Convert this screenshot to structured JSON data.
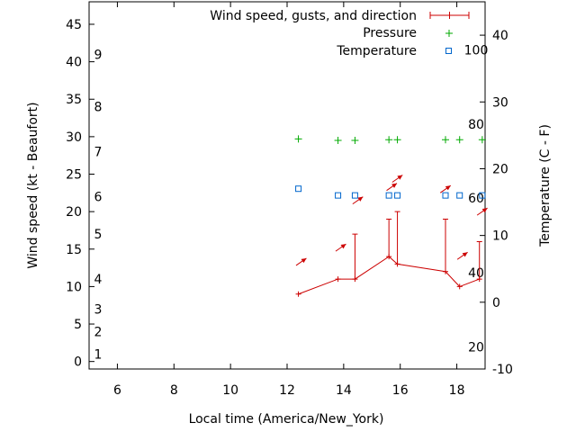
{
  "chart_data": {
    "type": "line",
    "xlabel": "Local time (America/New_York)",
    "ylabel": "Wind speed (kt - Beaufort)",
    "y2label": "Temperature (C - F)",
    "xlim": [
      5,
      19
    ],
    "ylim": [
      -1,
      48
    ],
    "y2lim": [
      -10,
      45
    ],
    "x_ticks": [
      6,
      8,
      10,
      12,
      14,
      16,
      18
    ],
    "y_ticks": [
      0,
      5,
      10,
      15,
      20,
      25,
      30,
      35,
      40,
      45
    ],
    "y2_ticks": [
      -10,
      0,
      10,
      20,
      30,
      40
    ],
    "beaufort_labels": [
      {
        "text": "1",
        "y": 1
      },
      {
        "text": "2",
        "y": 4
      },
      {
        "text": "3",
        "y": 7
      },
      {
        "text": "4",
        "y": 11
      },
      {
        "text": "5",
        "y": 17
      },
      {
        "text": "6",
        "y": 22
      },
      {
        "text": "7",
        "y": 28
      },
      {
        "text": "8",
        "y": 34
      },
      {
        "text": "9",
        "y": 41
      }
    ],
    "fahrenheit_labels": [
      {
        "text": "20",
        "t": -6.7
      },
      {
        "text": "40",
        "t": 4.4
      },
      {
        "text": "60",
        "t": 15.6
      },
      {
        "text": "80",
        "t": 26.7
      },
      {
        "text": "100",
        "t": 37.8
      }
    ],
    "legend": [
      "Wind speed, gusts, and direction",
      "Pressure",
      "Temperature"
    ],
    "colors": {
      "wind": "#cc0000",
      "pressure": "#00aa00",
      "temperature": "#0066cc"
    },
    "series": [
      {
        "name": "Wind speed, gusts, and direction",
        "x": [
          12.4,
          13.8,
          14.4,
          15.6,
          15.9,
          17.6,
          18.1,
          18.8
        ],
        "values": [
          9,
          11,
          11,
          14,
          13,
          12,
          10,
          11
        ],
        "gusts": [
          null,
          null,
          17,
          19,
          20,
          19,
          null,
          16
        ]
      },
      {
        "name": "Pressure",
        "x": [
          12.4,
          13.8,
          14.4,
          15.6,
          15.9,
          17.6,
          18.1,
          18.9
        ],
        "values": [
          29.7,
          29.5,
          29.5,
          29.6,
          29.6,
          29.6,
          29.6,
          29.6
        ]
      },
      {
        "name": "Temperature",
        "axis": "y2",
        "x": [
          12.4,
          13.8,
          14.4,
          15.6,
          15.9,
          17.6,
          18.1,
          18.9
        ],
        "values": [
          17,
          16,
          16,
          16,
          16,
          16,
          16,
          16
        ]
      }
    ],
    "wind_arrows": [
      {
        "x": 12.5,
        "y": 13.3
      },
      {
        "x": 13.9,
        "y": 15.2
      },
      {
        "x": 14.5,
        "y": 21.5
      },
      {
        "x": 15.7,
        "y": 23.3
      },
      {
        "x": 15.9,
        "y": 24.4
      },
      {
        "x": 17.6,
        "y": 23.0
      },
      {
        "x": 18.2,
        "y": 14.1
      },
      {
        "x": 18.9,
        "y": 20.0
      }
    ]
  }
}
